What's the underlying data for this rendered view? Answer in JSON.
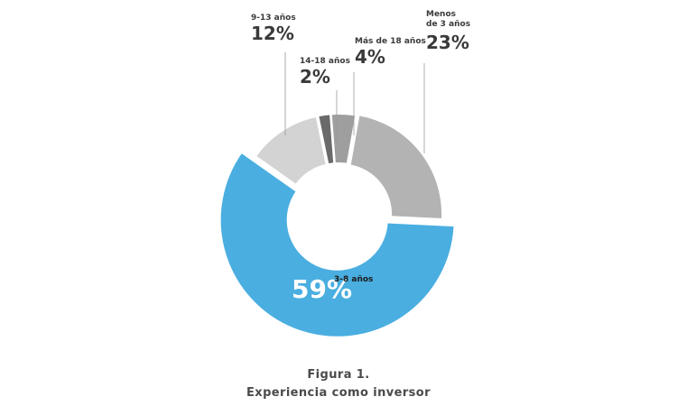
{
  "chart_data": {
    "type": "pie",
    "variant": "donut",
    "slices": [
      {
        "label": "Menos\nde 3 años",
        "value": 23,
        "display": "23%",
        "color": "#b3b3b3"
      },
      {
        "label": "3-8 años",
        "value": 59,
        "display": "59%",
        "color": "#4aaee0"
      },
      {
        "label": "9-13 años",
        "value": 12,
        "display": "12%",
        "color": "#d3d3d3"
      },
      {
        "label": "14-18 años",
        "value": 2,
        "display": "2%",
        "color": "#6a6a6a"
      },
      {
        "label": "Más de 18 años",
        "value": 4,
        "display": "4%",
        "color": "#9e9e9e"
      }
    ]
  },
  "caption": {
    "figure": "Figura 1.",
    "title": "Experiencia como inversor"
  }
}
